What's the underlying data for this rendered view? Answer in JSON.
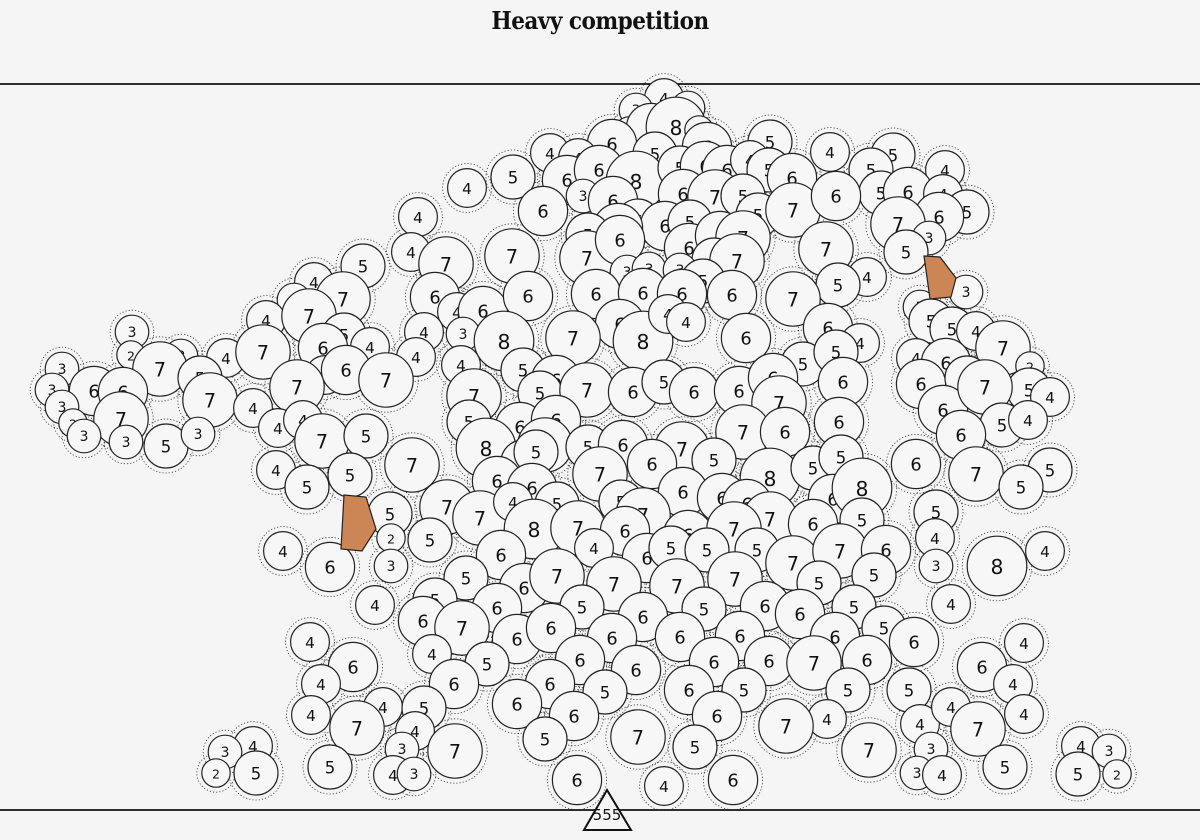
{
  "title": "Heavy competition",
  "total": "555",
  "colors": {
    "background": "#f6f5f6",
    "circle_fill": "#f8f7f8",
    "stroke": "#222222",
    "seed_fill": "#cc8656"
  },
  "circles": [
    [
      664,
      98,
      4
    ],
    [
      636,
      110,
      3
    ],
    [
      688,
      108,
      3
    ],
    [
      629,
      131,
      2
    ],
    [
      651,
      128,
      6
    ],
    [
      676,
      127,
      8
    ],
    [
      699,
      130,
      2
    ],
    [
      770,
      142,
      5
    ],
    [
      830,
      152,
      4
    ],
    [
      893,
      155,
      5
    ],
    [
      871,
      170,
      5
    ],
    [
      945,
      170,
      4
    ],
    [
      550,
      153,
      4
    ],
    [
      612,
      144,
      6
    ],
    [
      578,
      158,
      4
    ],
    [
      655,
      154,
      5
    ],
    [
      707,
      147,
      6
    ],
    [
      467,
      188,
      4
    ],
    [
      513,
      177,
      5
    ],
    [
      567,
      180,
      6
    ],
    [
      599,
      170,
      6
    ],
    [
      636,
      181,
      8
    ],
    [
      680,
      168,
      5
    ],
    [
      705,
      166,
      6
    ],
    [
      727,
      170,
      6
    ],
    [
      750,
      160,
      4
    ],
    [
      769,
      170,
      5
    ],
    [
      792,
      178,
      6
    ],
    [
      583,
      196,
      3
    ],
    [
      613,
      201,
      6
    ],
    [
      683,
      194,
      6
    ],
    [
      715,
      197,
      7
    ],
    [
      743,
      196,
      5
    ],
    [
      881,
      193,
      5
    ],
    [
      908,
      192,
      6
    ],
    [
      943,
      194,
      4
    ],
    [
      967,
      212,
      5
    ],
    [
      939,
      217,
      6
    ],
    [
      898,
      224,
      7
    ],
    [
      543,
      211,
      6
    ],
    [
      638,
      221,
      5
    ],
    [
      665,
      226,
      6
    ],
    [
      690,
      222,
      5
    ],
    [
      758,
      215,
      5
    ],
    [
      793,
      210,
      7
    ],
    [
      836,
      196,
      6
    ],
    [
      418,
      217,
      4
    ],
    [
      618,
      228,
      6
    ],
    [
      929,
      238,
      3
    ],
    [
      906,
      252,
      5
    ],
    [
      411,
      252,
      4
    ],
    [
      446,
      264,
      7
    ],
    [
      512,
      256,
      7
    ],
    [
      588,
      235,
      5
    ],
    [
      587,
      258,
      7
    ],
    [
      620,
      240,
      6
    ],
    [
      689,
      248,
      6
    ],
    [
      720,
      236,
      6
    ],
    [
      743,
      238,
      7
    ],
    [
      826,
      249,
      7
    ],
    [
      714,
      260,
      5
    ],
    [
      737,
      261,
      7
    ],
    [
      363,
      266,
      5
    ],
    [
      314,
      282,
      4
    ],
    [
      294,
      300,
      3
    ],
    [
      343,
      299,
      7
    ],
    [
      627,
      272,
      3
    ],
    [
      649,
      269,
      3
    ],
    [
      680,
      270,
      3
    ],
    [
      703,
      281,
      5
    ],
    [
      867,
      277,
      4
    ],
    [
      838,
      285,
      5
    ],
    [
      966,
      292,
      3
    ],
    [
      920,
      307,
      3
    ],
    [
      435,
      297,
      6
    ],
    [
      457,
      312,
      4
    ],
    [
      483,
      311,
      6
    ],
    [
      528,
      296,
      6
    ],
    [
      596,
      294,
      6
    ],
    [
      643,
      293,
      6
    ],
    [
      682,
      294,
      6
    ],
    [
      732,
      295,
      6
    ],
    [
      793,
      299,
      7
    ],
    [
      931,
      321,
      5
    ],
    [
      266,
      320,
      4
    ],
    [
      309,
      316,
      7
    ],
    [
      344,
      335,
      5
    ],
    [
      424,
      332,
      4
    ],
    [
      463,
      334,
      3
    ],
    [
      620,
      324,
      6
    ],
    [
      643,
      341,
      8
    ],
    [
      668,
      314,
      4
    ],
    [
      686,
      322,
      4
    ],
    [
      828,
      328,
      6
    ],
    [
      952,
      329,
      5
    ],
    [
      976,
      331,
      4
    ],
    [
      1003,
      348,
      7
    ],
    [
      132,
      332,
      3
    ],
    [
      131,
      355,
      2
    ],
    [
      181,
      356,
      3
    ],
    [
      160,
      369,
      7
    ],
    [
      226,
      358,
      4
    ],
    [
      263,
      352,
      7
    ],
    [
      323,
      348,
      6
    ],
    [
      370,
      347,
      4
    ],
    [
      416,
      357,
      4
    ],
    [
      504,
      341,
      8
    ],
    [
      573,
      338,
      7
    ],
    [
      746,
      338,
      6
    ],
    [
      860,
      343,
      4
    ],
    [
      62,
      369,
      3
    ],
    [
      200,
      378,
      5
    ],
    [
      325,
      375,
      4
    ],
    [
      346,
      370,
      6
    ],
    [
      386,
      380,
      7
    ],
    [
      461,
      365,
      4
    ],
    [
      523,
      370,
      5
    ],
    [
      556,
      380,
      6
    ],
    [
      803,
      364,
      5
    ],
    [
      836,
      352,
      5
    ],
    [
      916,
      358,
      4
    ],
    [
      946,
      363,
      6
    ],
    [
      1030,
      366,
      2
    ],
    [
      52,
      390,
      3
    ],
    [
      94,
      391,
      6
    ],
    [
      123,
      392,
      6
    ],
    [
      297,
      387,
      7
    ],
    [
      540,
      393,
      5
    ],
    [
      587,
      390,
      7
    ],
    [
      633,
      392,
      6
    ],
    [
      664,
      382,
      5
    ],
    [
      694,
      392,
      6
    ],
    [
      739,
      391,
      6
    ],
    [
      773,
      378,
      6
    ],
    [
      843,
      382,
      6
    ],
    [
      921,
      384,
      6
    ],
    [
      967,
      378,
      5
    ],
    [
      1029,
      390,
      5
    ],
    [
      1050,
      397,
      4
    ],
    [
      62,
      407,
      3
    ],
    [
      210,
      400,
      7
    ],
    [
      253,
      408,
      4
    ],
    [
      474,
      396,
      7
    ],
    [
      779,
      403,
      7
    ],
    [
      943,
      410,
      6
    ],
    [
      985,
      387,
      7
    ],
    [
      121,
      419,
      7
    ],
    [
      73,
      423,
      2
    ],
    [
      84,
      436,
      3
    ],
    [
      278,
      428,
      4
    ],
    [
      303,
      420,
      4
    ],
    [
      469,
      422,
      5
    ],
    [
      520,
      427,
      6
    ],
    [
      556,
      420,
      6
    ],
    [
      839,
      422,
      6
    ],
    [
      1002,
      425,
      5
    ],
    [
      1028,
      420,
      4
    ],
    [
      126,
      442,
      3
    ],
    [
      166,
      446,
      5
    ],
    [
      198,
      434,
      3
    ],
    [
      322,
      441,
      7
    ],
    [
      366,
      436,
      5
    ],
    [
      486,
      448,
      8
    ],
    [
      545,
      445,
      7
    ],
    [
      588,
      447,
      5
    ],
    [
      623,
      445,
      6
    ],
    [
      682,
      449,
      7
    ],
    [
      743,
      432,
      7
    ],
    [
      785,
      432,
      6
    ],
    [
      961,
      435,
      6
    ],
    [
      276,
      470,
      4
    ],
    [
      350,
      475,
      5
    ],
    [
      412,
      465,
      7
    ],
    [
      523,
      462,
      5
    ],
    [
      536,
      452,
      5
    ],
    [
      600,
      474,
      7
    ],
    [
      652,
      464,
      6
    ],
    [
      714,
      460,
      5
    ],
    [
      770,
      478,
      8
    ],
    [
      813,
      468,
      5
    ],
    [
      841,
      457,
      5
    ],
    [
      916,
      464,
      6
    ],
    [
      976,
      474,
      7
    ],
    [
      1050,
      470,
      5
    ],
    [
      307,
      487,
      5
    ],
    [
      497,
      481,
      6
    ],
    [
      532,
      488,
      6
    ],
    [
      621,
      502,
      5
    ],
    [
      683,
      492,
      6
    ],
    [
      722,
      498,
      6
    ],
    [
      747,
      504,
      6
    ],
    [
      833,
      499,
      6
    ],
    [
      862,
      488,
      8
    ],
    [
      1021,
      487,
      5
    ],
    [
      390,
      514,
      5
    ],
    [
      447,
      507,
      7
    ],
    [
      480,
      518,
      7
    ],
    [
      513,
      502,
      4
    ],
    [
      557,
      504,
      5
    ],
    [
      643,
      515,
      7
    ],
    [
      770,
      519,
      7
    ],
    [
      813,
      524,
      6
    ],
    [
      862,
      520,
      5
    ],
    [
      936,
      512,
      5
    ],
    [
      391,
      538,
      2
    ],
    [
      430,
      540,
      5
    ],
    [
      534,
      529,
      8
    ],
    [
      578,
      528,
      7
    ],
    [
      625,
      531,
      6
    ],
    [
      688,
      535,
      6
    ],
    [
      734,
      529,
      7
    ],
    [
      935,
      538,
      4
    ],
    [
      283,
      551,
      4
    ],
    [
      330,
      567,
      6
    ],
    [
      391,
      566,
      3
    ],
    [
      501,
      555,
      6
    ],
    [
      594,
      548,
      4
    ],
    [
      647,
      558,
      6
    ],
    [
      671,
      548,
      5
    ],
    [
      707,
      550,
      5
    ],
    [
      757,
      550,
      5
    ],
    [
      793,
      563,
      7
    ],
    [
      840,
      551,
      7
    ],
    [
      886,
      550,
      6
    ],
    [
      936,
      566,
      3
    ],
    [
      997,
      566,
      8
    ],
    [
      1045,
      551,
      4
    ],
    [
      466,
      578,
      5
    ],
    [
      524,
      588,
      6
    ],
    [
      557,
      576,
      7
    ],
    [
      614,
      584,
      7
    ],
    [
      677,
      586,
      7
    ],
    [
      735,
      579,
      7
    ],
    [
      819,
      583,
      5
    ],
    [
      874,
      575,
      5
    ],
    [
      375,
      605,
      4
    ],
    [
      435,
      600,
      5
    ],
    [
      497,
      608,
      6
    ],
    [
      582,
      607,
      5
    ],
    [
      643,
      617,
      6
    ],
    [
      704,
      609,
      5
    ],
    [
      765,
      606,
      6
    ],
    [
      800,
      614,
      6
    ],
    [
      854,
      607,
      5
    ],
    [
      951,
      604,
      4
    ],
    [
      423,
      621,
      6
    ],
    [
      462,
      628,
      7
    ],
    [
      517,
      639,
      6
    ],
    [
      551,
      628,
      6
    ],
    [
      612,
      638,
      6
    ],
    [
      680,
      637,
      6
    ],
    [
      740,
      636,
      6
    ],
    [
      835,
      637,
      6
    ],
    [
      884,
      628,
      5
    ],
    [
      914,
      642,
      6
    ],
    [
      310,
      642,
      4
    ],
    [
      432,
      654,
      4
    ],
    [
      487,
      664,
      5
    ],
    [
      580,
      660,
      6
    ],
    [
      636,
      670,
      6
    ],
    [
      714,
      662,
      6
    ],
    [
      769,
      661,
      6
    ],
    [
      814,
      663,
      7
    ],
    [
      867,
      660,
      6
    ],
    [
      1024,
      643,
      4
    ],
    [
      353,
      667,
      6
    ],
    [
      982,
      667,
      6
    ],
    [
      321,
      684,
      4
    ],
    [
      454,
      684,
      6
    ],
    [
      550,
      684,
      6
    ],
    [
      605,
      692,
      5
    ],
    [
      689,
      690,
      6
    ],
    [
      744,
      690,
      5
    ],
    [
      848,
      690,
      5
    ],
    [
      909,
      690,
      5
    ],
    [
      1013,
      684,
      4
    ],
    [
      311,
      715,
      4
    ],
    [
      383,
      707,
      4
    ],
    [
      424,
      708,
      5
    ],
    [
      517,
      704,
      6
    ],
    [
      574,
      716,
      6
    ],
    [
      717,
      716,
      6
    ],
    [
      827,
      719,
      4
    ],
    [
      920,
      724,
      4
    ],
    [
      951,
      707,
      4
    ],
    [
      1024,
      714,
      4
    ],
    [
      357,
      728,
      7
    ],
    [
      415,
      731,
      4
    ],
    [
      253,
      746,
      4
    ],
    [
      225,
      752,
      3
    ],
    [
      402,
      749,
      3
    ],
    [
      455,
      751,
      7
    ],
    [
      545,
      739,
      5
    ],
    [
      638,
      737,
      7
    ],
    [
      695,
      747,
      5
    ],
    [
      786,
      726,
      7
    ],
    [
      869,
      750,
      7
    ],
    [
      931,
      749,
      3
    ],
    [
      978,
      729,
      7
    ],
    [
      1081,
      746,
      4
    ],
    [
      1109,
      751,
      3
    ],
    [
      216,
      773,
      2
    ],
    [
      256,
      773,
      5
    ],
    [
      330,
      767,
      5
    ],
    [
      393,
      775,
      4
    ],
    [
      414,
      774,
      3
    ],
    [
      577,
      780,
      6
    ],
    [
      664,
      786,
      4
    ],
    [
      733,
      780,
      6
    ],
    [
      917,
      773,
      3
    ],
    [
      942,
      775,
      4
    ],
    [
      1005,
      767,
      5
    ],
    [
      1078,
      774,
      5
    ],
    [
      1117,
      774,
      2
    ]
  ]
}
